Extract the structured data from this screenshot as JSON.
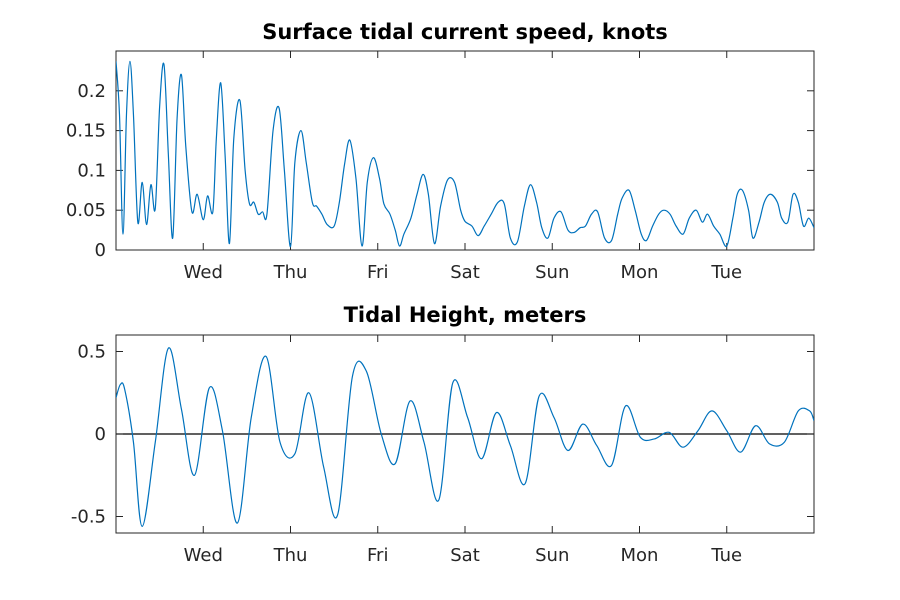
{
  "chart_data": [
    {
      "type": "line",
      "title": "Surface tidal current speed, knots",
      "xlabel": "",
      "ylabel": "",
      "x_tick_labels": [
        "Wed",
        "Thu",
        "Fri",
        "Sat",
        "Sun",
        "Mon",
        "Tue"
      ],
      "x_tick_positions_days": [
        1,
        2,
        3,
        4,
        5,
        6,
        7
      ],
      "xlim_days": [
        0,
        8
      ],
      "ylim": [
        0,
        0.25
      ],
      "y_ticks": [
        0,
        0.05,
        0.1,
        0.15,
        0.2
      ],
      "y_tick_labels": [
        "0",
        "0.05",
        "0.1",
        "0.15",
        "0.2"
      ],
      "grid": false,
      "series": [
        {
          "color": "#0072BD",
          "x": [
            0,
            0.04,
            0.08,
            0.12,
            0.16,
            0.2,
            0.25,
            0.3,
            0.35,
            0.4,
            0.45,
            0.5,
            0.55,
            0.6,
            0.65,
            0.7,
            0.75,
            0.8,
            0.87,
            0.93,
            1.0,
            1.05,
            1.11,
            1.15,
            1.2,
            1.25,
            1.3,
            1.35,
            1.42,
            1.48,
            1.53,
            1.58,
            1.63,
            1.68,
            1.73,
            1.8,
            1.87,
            1.93,
            2.0,
            2.05,
            2.12,
            2.18,
            2.25,
            2.3,
            2.36,
            2.42,
            2.5,
            2.56,
            2.62,
            2.68,
            2.75,
            2.82,
            2.88,
            2.95,
            3.02,
            3.07,
            3.14,
            3.2,
            3.25,
            3.3,
            3.38,
            3.45,
            3.52,
            3.58,
            3.65,
            3.72,
            3.8,
            3.88,
            3.95,
            4.0,
            4.08,
            4.15,
            4.22,
            4.3,
            4.38,
            4.45,
            4.52,
            4.6,
            4.68,
            4.75,
            4.82,
            4.88,
            4.95,
            5.02,
            5.1,
            5.18,
            5.25,
            5.32,
            5.38,
            5.45,
            5.52,
            5.6,
            5.68,
            5.75,
            5.8,
            5.88,
            5.95,
            6.02,
            6.08,
            6.15,
            6.22,
            6.28,
            6.35,
            6.42,
            6.5,
            6.57,
            6.65,
            6.72,
            6.78,
            6.85,
            6.92,
            7.0,
            7.07,
            7.12,
            7.18,
            7.25,
            7.3,
            7.37,
            7.43,
            7.5,
            7.58,
            7.63,
            7.7,
            7.76,
            7.82,
            7.88,
            7.94,
            8.0
          ],
          "values": [
            0.237,
            0.17,
            0.02,
            0.17,
            0.237,
            0.17,
            0.035,
            0.085,
            0.032,
            0.082,
            0.052,
            0.18,
            0.233,
            0.12,
            0.015,
            0.165,
            0.22,
            0.13,
            0.048,
            0.07,
            0.038,
            0.068,
            0.048,
            0.14,
            0.21,
            0.12,
            0.008,
            0.14,
            0.188,
            0.1,
            0.058,
            0.06,
            0.045,
            0.048,
            0.045,
            0.15,
            0.178,
            0.1,
            0.004,
            0.11,
            0.15,
            0.11,
            0.06,
            0.055,
            0.045,
            0.032,
            0.03,
            0.06,
            0.108,
            0.138,
            0.09,
            0.005,
            0.085,
            0.116,
            0.09,
            0.058,
            0.045,
            0.025,
            0.005,
            0.02,
            0.04,
            0.07,
            0.095,
            0.07,
            0.008,
            0.055,
            0.088,
            0.085,
            0.05,
            0.036,
            0.03,
            0.018,
            0.03,
            0.045,
            0.06,
            0.058,
            0.015,
            0.01,
            0.055,
            0.082,
            0.06,
            0.028,
            0.015,
            0.04,
            0.048,
            0.025,
            0.022,
            0.028,
            0.03,
            0.045,
            0.048,
            0.015,
            0.012,
            0.045,
            0.065,
            0.075,
            0.05,
            0.02,
            0.012,
            0.03,
            0.045,
            0.05,
            0.045,
            0.03,
            0.02,
            0.04,
            0.05,
            0.035,
            0.045,
            0.03,
            0.02,
            0.005,
            0.04,
            0.07,
            0.075,
            0.05,
            0.015,
            0.035,
            0.06,
            0.07,
            0.06,
            0.04,
            0.035,
            0.07,
            0.06,
            0.03,
            0.04,
            0.028
          ]
        }
      ]
    },
    {
      "type": "line",
      "title": "Tidal Height, meters",
      "xlabel": "",
      "ylabel": "",
      "x_tick_labels": [
        "Wed",
        "Thu",
        "Fri",
        "Sat",
        "Sun",
        "Mon",
        "Tue"
      ],
      "x_tick_positions_days": [
        1,
        2,
        3,
        4,
        5,
        6,
        7
      ],
      "xlim_days": [
        0,
        8
      ],
      "ylim": [
        -0.6,
        0.6
      ],
      "y_ticks": [
        -0.5,
        0,
        0.5
      ],
      "y_tick_labels": [
        "-0.5",
        "0",
        "0.5"
      ],
      "zero_line": true,
      "grid": false,
      "series": [
        {
          "color": "#0072BD",
          "x": [
            0,
            0.05,
            0.1,
            0.2,
            0.3,
            0.45,
            0.6,
            0.75,
            0.9,
            1.07,
            1.22,
            1.39,
            1.55,
            1.72,
            1.88,
            2.05,
            2.21,
            2.38,
            2.54,
            2.71,
            2.87,
            3.04,
            3.2,
            3.37,
            3.53,
            3.7,
            3.86,
            4.03,
            4.19,
            4.36,
            4.52,
            4.69,
            4.85,
            5.02,
            5.18,
            5.35,
            5.51,
            5.68,
            5.84,
            6.01,
            6.17,
            6.34,
            6.5,
            6.67,
            6.83,
            7.0,
            7.16,
            7.33,
            7.49,
            7.66,
            7.82,
            7.95,
            8.0
          ],
          "values": [
            0.22,
            0.3,
            0.27,
            -0.05,
            -0.56,
            -0.05,
            0.52,
            0.15,
            -0.25,
            0.28,
            0.02,
            -0.54,
            0.1,
            0.47,
            -0.05,
            -0.12,
            0.25,
            -0.2,
            -0.49,
            0.35,
            0.38,
            0.0,
            -0.18,
            0.2,
            -0.05,
            -0.4,
            0.31,
            0.1,
            -0.15,
            0.13,
            -0.07,
            -0.3,
            0.23,
            0.1,
            -0.1,
            0.06,
            -0.07,
            -0.19,
            0.17,
            -0.02,
            -0.03,
            0.01,
            -0.08,
            0.02,
            0.14,
            0.02,
            -0.11,
            0.05,
            -0.06,
            -0.05,
            0.14,
            0.14,
            0.08
          ]
        }
      ]
    }
  ]
}
